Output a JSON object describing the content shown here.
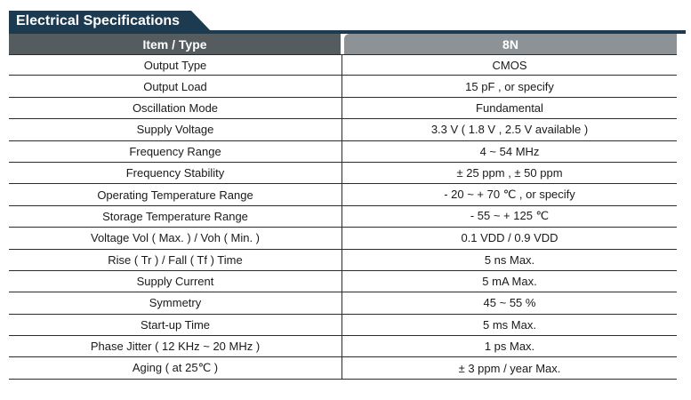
{
  "title": "Electrical Specifications",
  "header": {
    "item_label": "Item / Type",
    "model_label": "8N"
  },
  "rows": [
    {
      "item": "Output Type",
      "value": "CMOS"
    },
    {
      "item": "Output Load",
      "value": "15 pF , or specify"
    },
    {
      "item": "Oscillation Mode",
      "value": "Fundamental"
    },
    {
      "item": "Supply Voltage",
      "value": "3.3 V ( 1.8 V , 2.5 V available )"
    },
    {
      "item": "Frequency Range",
      "value": "4 ~ 54 MHz"
    },
    {
      "item": "Frequency Stability",
      "value": "± 25 ppm , ± 50 ppm"
    },
    {
      "item": "Operating Temperature Range",
      "value": "- 20 ~ + 70 ℃ , or specify"
    },
    {
      "item": "Storage Temperature Range",
      "value": "- 55 ~ + 125 ℃"
    },
    {
      "item": "Voltage Vol ( Max. ) / Voh ( Min. )",
      "value": "0.1 VDD / 0.9 VDD"
    },
    {
      "item": "Rise ( Tr ) / Fall ( Tf ) Time",
      "value": "5 ns Max."
    },
    {
      "item": "Supply Current",
      "value": "5 mA Max."
    },
    {
      "item": "Symmetry",
      "value": "45 ~ 55 %"
    },
    {
      "item": "Start-up Time",
      "value": "5 ms Max."
    },
    {
      "item": "Phase Jitter ( 12 KHz ~ 20 MHz )",
      "value": "1 ps Max."
    },
    {
      "item": "Aging ( at 25℃ )",
      "value": "± 3 ppm / year Max."
    }
  ]
}
